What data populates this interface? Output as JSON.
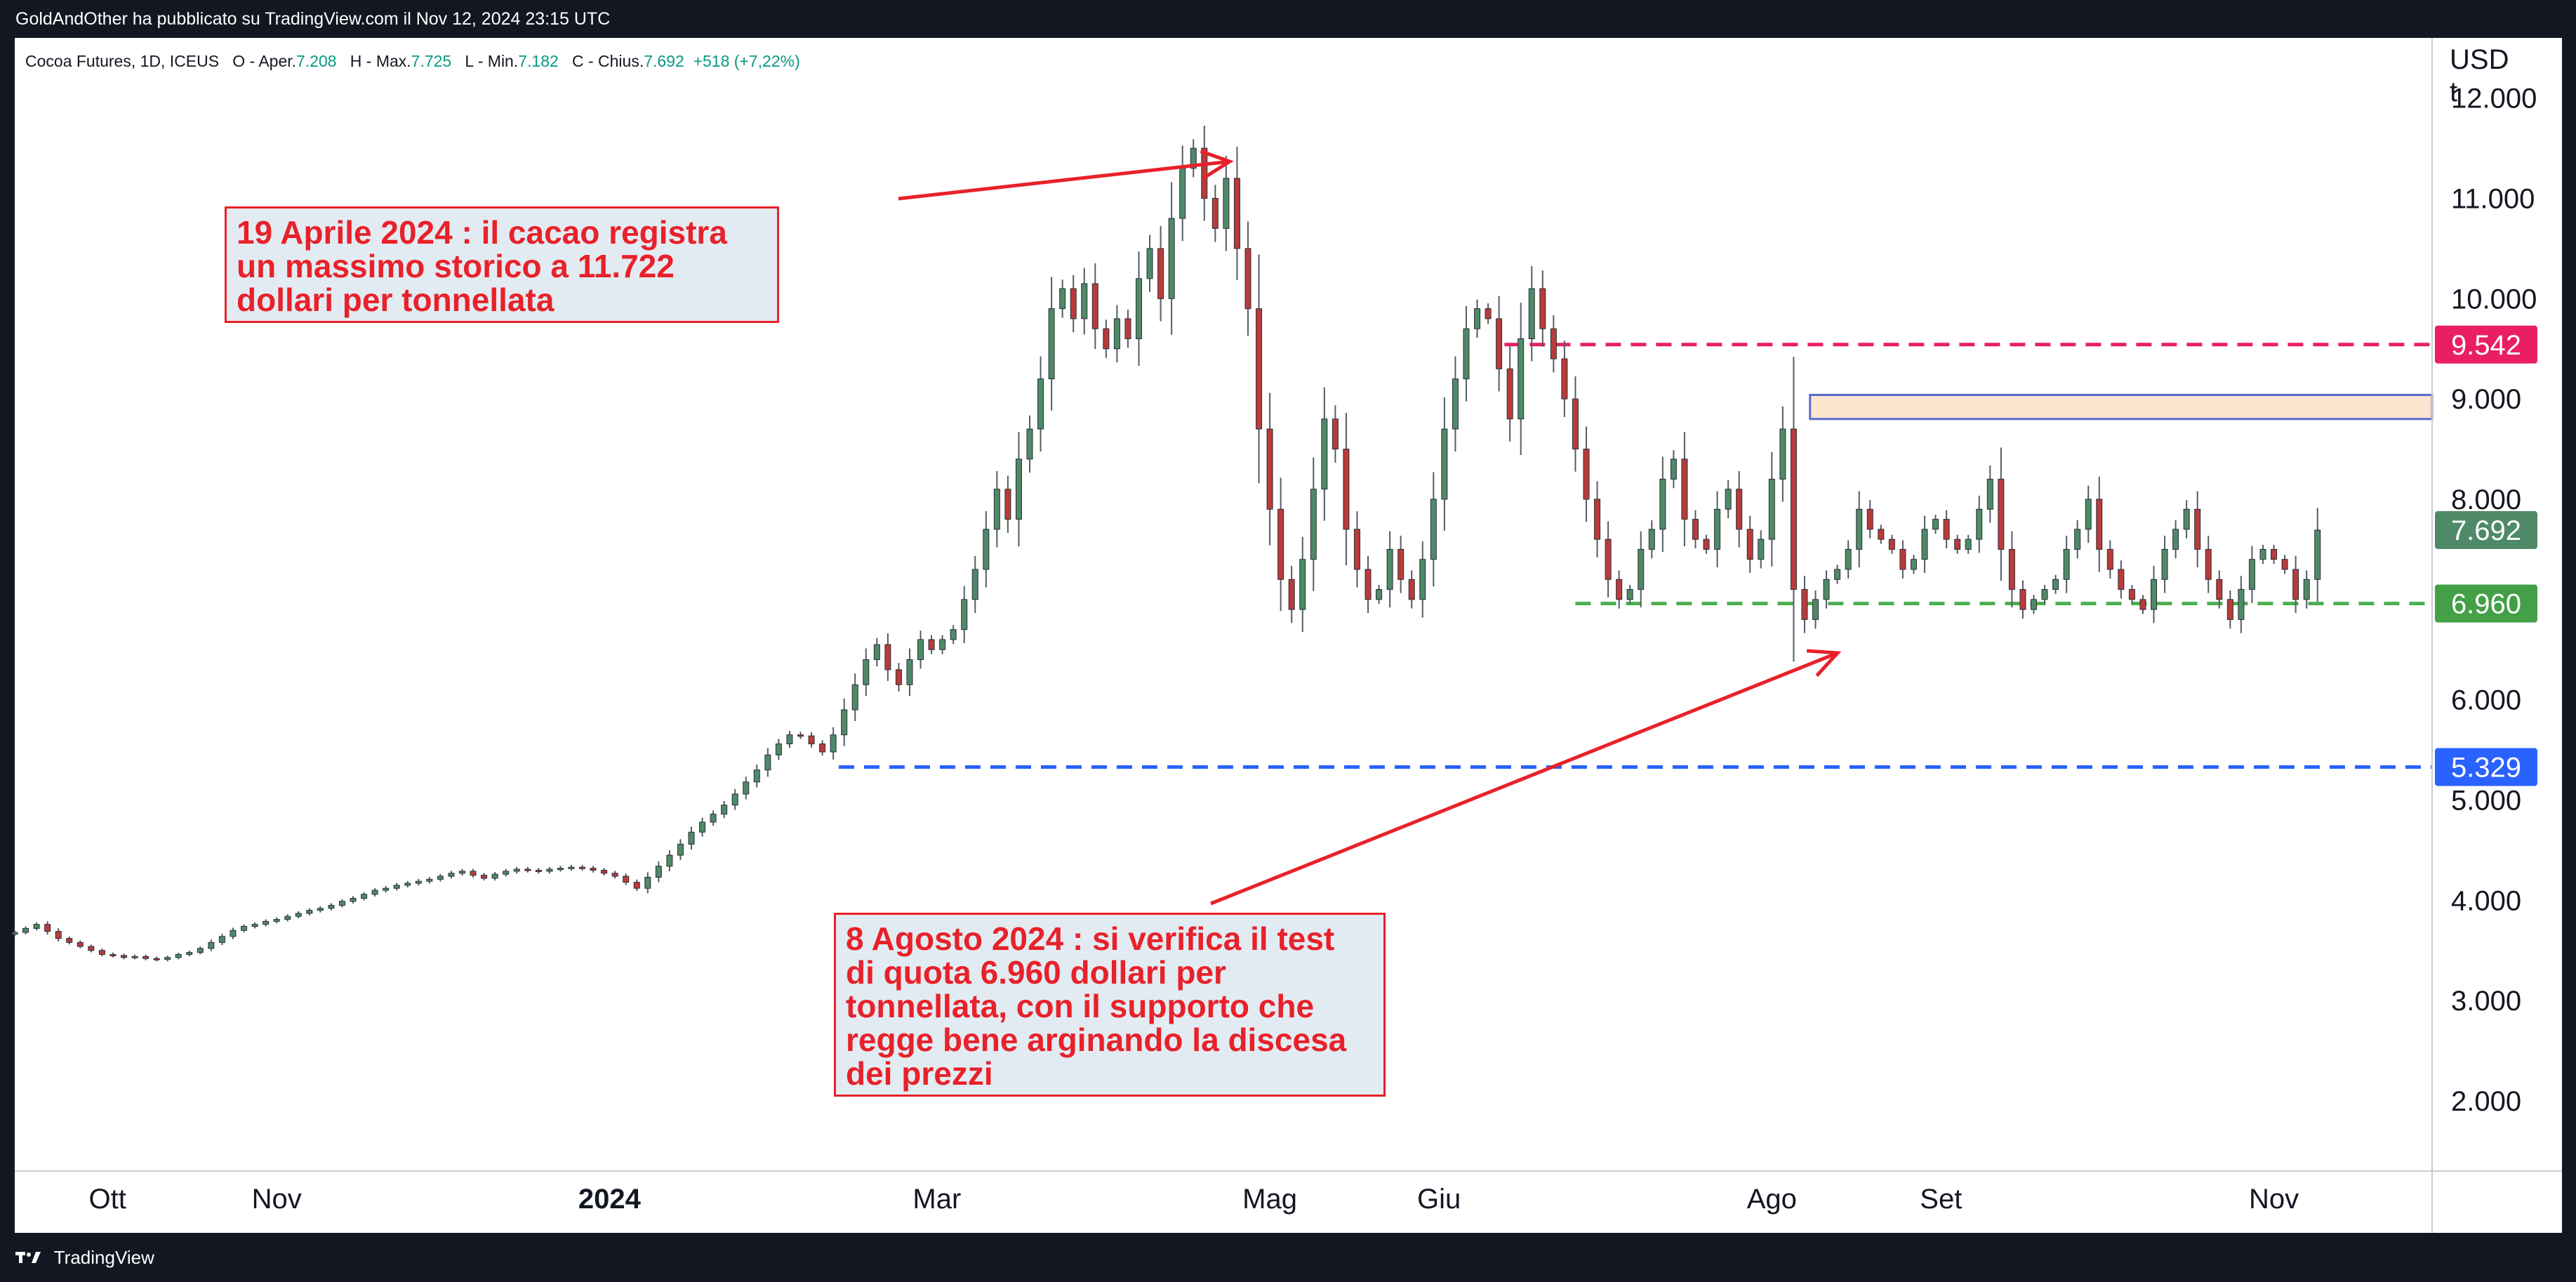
{
  "header": {
    "attribution": "GoldAndOther ha pubblicato su TradingView.com il Nov 12, 2024 23:15 UTC"
  },
  "legend": {
    "symbol": "Cocoa Futures, 1D, ICEUS",
    "open_label": "O - Aper.",
    "open_value": "7.208",
    "high_label": "H - Max.",
    "high_value": "7.725",
    "low_label": "L - Min.",
    "low_value": "7.182",
    "close_label": "C - Chius.",
    "close_value": "7.692",
    "change": "+518 (+7,22%)"
  },
  "axis": {
    "currency": "USD",
    "unit": "t"
  },
  "annotations": [
    {
      "lines": [
        "19 Aprile 2024 : il cacao registra",
        "un massimo storico a 11.722",
        "dollari per tonnellata"
      ]
    },
    {
      "lines": [
        "8 Agosto 2024 : si verifica il test",
        "di quota 6.960 dollari per",
        "tonnellata, con il supporto che",
        "regge bene arginando la discesa",
        "dei prezzi"
      ]
    }
  ],
  "footer": {
    "brand": "TradingView"
  },
  "colors": {
    "up": "#4f8a68",
    "down": "#b93b3b",
    "annotation_red": "#e8212a",
    "resistance": "#e91e63",
    "support": "#4caf50",
    "lowline": "#2962ff",
    "zone_fill": "#fde5cf",
    "zone_border": "#5b6ad0"
  },
  "chart_data": {
    "type": "candlestick",
    "title": "Cocoa Futures, 1D, ICEUS",
    "ylim": [
      1300,
      12600
    ],
    "xlim": [
      "2023-09-14",
      "2024-11-30"
    ],
    "y_ticks": [
      {
        "value": 2000,
        "label": "2.000"
      },
      {
        "value": 3000,
        "label": "3.000"
      },
      {
        "value": 4000,
        "label": "4.000"
      },
      {
        "value": 5000,
        "label": "5.000"
      },
      {
        "value": 6000,
        "label": "6.000"
      },
      {
        "value": 8000,
        "label": "8.000"
      },
      {
        "value": 9000,
        "label": "9.000"
      },
      {
        "value": 10000,
        "label": "10.000"
      },
      {
        "value": 11000,
        "label": "11.000"
      },
      {
        "value": 12000,
        "label": "12.000"
      }
    ],
    "x_ticks": [
      {
        "date": "2023-10-01",
        "label": "Ott",
        "bold": false
      },
      {
        "date": "2023-11-01",
        "label": "Nov",
        "bold": false
      },
      {
        "date": "2024-01-01",
        "label": "2024",
        "bold": true
      },
      {
        "date": "2024-03-01",
        "label": "Mar",
        "bold": false
      },
      {
        "date": "2024-05-01",
        "label": "Mag",
        "bold": false
      },
      {
        "date": "2024-06-01",
        "label": "Giu",
        "bold": false
      },
      {
        "date": "2024-08-01",
        "label": "Ago",
        "bold": false
      },
      {
        "date": "2024-09-01",
        "label": "Set",
        "bold": false
      },
      {
        "date": "2024-11-01",
        "label": "Nov",
        "bold": false
      }
    ],
    "price_badges": [
      {
        "value": 9542,
        "label": "9.542",
        "color": "#e91e63"
      },
      {
        "value": 7692,
        "label": "7.692",
        "color": "#4f8a68"
      },
      {
        "value": 6960,
        "label": "6.960",
        "color": "#43a047"
      },
      {
        "value": 5329,
        "label": "5.329",
        "color": "#2962ff"
      }
    ],
    "horizontal_levels": [
      {
        "value": 9542,
        "from": "2024-06-13",
        "style": "dashed",
        "color": "#e91e63"
      },
      {
        "value": 6960,
        "from": "2024-06-26",
        "style": "dashed",
        "color": "#4caf50"
      },
      {
        "value": 5329,
        "from": "2024-02-12",
        "style": "dashed",
        "color": "#2962ff"
      }
    ],
    "zone": {
      "from": "2024-08-08",
      "y_low": 8800,
      "y_high": 9040
    },
    "close_series": {
      "start_date": "2023-09-14",
      "step_days": 2,
      "values": [
        3680,
        3720,
        3760,
        3690,
        3620,
        3580,
        3540,
        3500,
        3460,
        3450,
        3430,
        3440,
        3420,
        3410,
        3430,
        3460,
        3480,
        3520,
        3580,
        3640,
        3700,
        3740,
        3760,
        3790,
        3810,
        3840,
        3870,
        3900,
        3920,
        3950,
        3990,
        4020,
        4060,
        4100,
        4120,
        4150,
        4170,
        4190,
        4210,
        4240,
        4270,
        4290,
        4250,
        4220,
        4260,
        4290,
        4310,
        4300,
        4290,
        4310,
        4320,
        4330,
        4320,
        4300,
        4270,
        4240,
        4180,
        4120,
        4230,
        4340,
        4450,
        4560,
        4680,
        4780,
        4860,
        4950,
        5060,
        5180,
        5300,
        5450,
        5560,
        5650,
        5640,
        5560,
        5480,
        5650,
        5900,
        6150,
        6400,
        6550,
        6300,
        6150,
        6400,
        6600,
        6500,
        6600,
        6700,
        7000,
        7300,
        7700,
        8100,
        7800,
        8400,
        8700,
        9200,
        9900,
        10100,
        9800,
        10150,
        9700,
        9500,
        9800,
        9600,
        10200,
        10500,
        10000,
        10800,
        11300,
        11500,
        11000,
        10700,
        11200,
        10500,
        9900,
        8700,
        7900,
        7200,
        6900,
        7400,
        8100,
        8800,
        8500,
        7700,
        7300,
        7000,
        7100,
        7500,
        7200,
        7000,
        7400,
        8000,
        8700,
        9200,
        9700,
        9900,
        9800,
        9300,
        8800,
        9600,
        10100,
        9700,
        9400,
        9000,
        8500,
        8000,
        7600,
        7200,
        7000,
        7100,
        7500,
        7700,
        8200,
        8400,
        7800,
        7600,
        7500,
        7900,
        8100,
        7700,
        7400,
        7600,
        8200,
        8700,
        7100,
        6800,
        7000,
        7200,
        7300,
        7500,
        7900,
        7700,
        7600,
        7500,
        7300,
        7400,
        7700,
        7800,
        7600,
        7500,
        7600,
        7900,
        8200,
        7500,
        7100,
        6900,
        7000,
        7100,
        7200,
        7500,
        7700,
        8000,
        7500,
        7300,
        7100,
        7000,
        6900,
        7200,
        7500,
        7700,
        7900,
        7500,
        7200,
        7000,
        6800,
        7100,
        7400,
        7500,
        7400,
        7300,
        7000,
        7200,
        7692
      ]
    }
  }
}
